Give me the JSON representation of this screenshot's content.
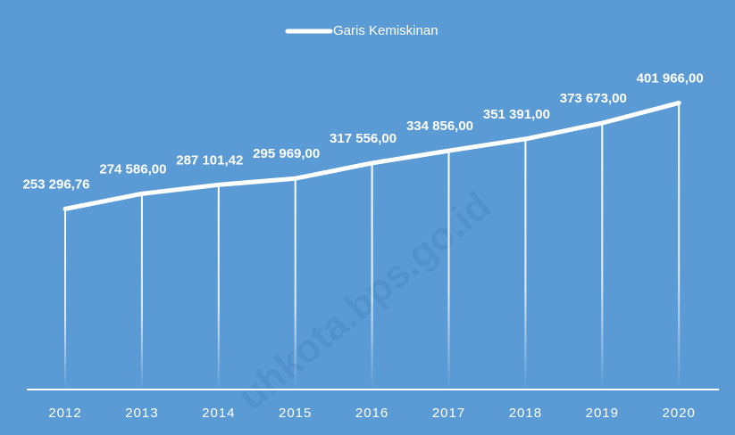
{
  "chart_data": {
    "type": "line",
    "legend": "Garis Kemiskinan",
    "watermark": "uhkota.bps.go.id",
    "categories": [
      "2012",
      "2013",
      "2014",
      "2015",
      "2016",
      "2017",
      "2018",
      "2019",
      "2020"
    ],
    "series": [
      {
        "name": "Garis Kemiskinan",
        "color": "#ffffff",
        "values": [
          253296.76,
          274586,
          287101.42,
          295969,
          317556,
          334856,
          351391,
          373673,
          401966
        ],
        "value_labels": [
          "253 296,76",
          "274 586,00",
          "287 101,42",
          "295 969,00",
          "317 556,00",
          "334 856,00",
          "351 391,00",
          "373 673,00",
          "401 966,00"
        ]
      }
    ],
    "ylim": [
      0,
      500000
    ],
    "background": "#5b9bd5"
  }
}
